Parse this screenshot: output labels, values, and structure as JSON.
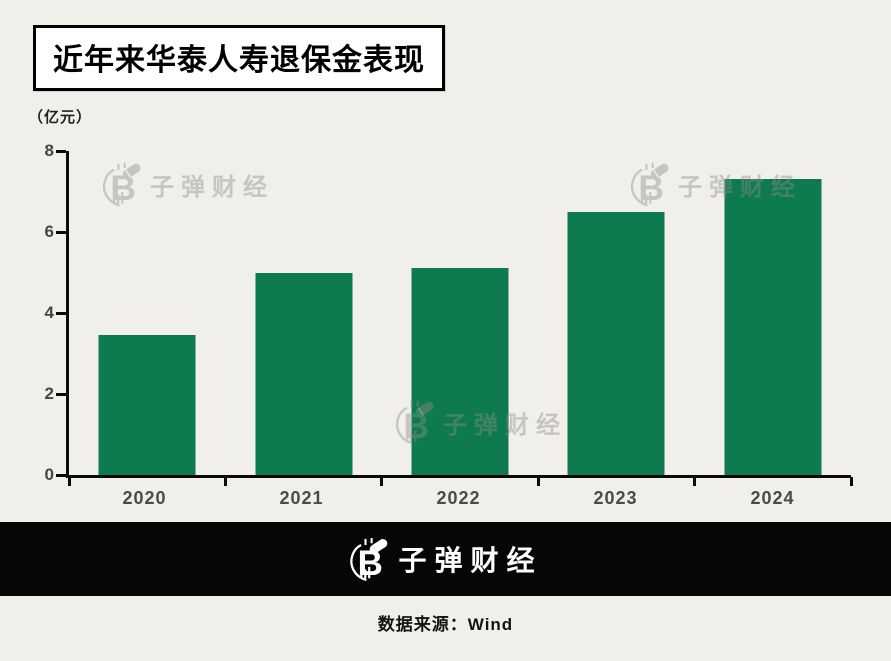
{
  "title": "近年来华泰人寿退保金表现",
  "unit_label": "（亿元）",
  "watermark_text": "子弹财经",
  "footer": {
    "brand": "子弹财经",
    "source": "数据来源：Wind"
  },
  "colors": {
    "background": "#f0efe9",
    "bar": "#0e7b4e",
    "axis": "#0a0a0a",
    "y_tick_label": "#45454d",
    "x_tick_label": "#4a4a4a",
    "footer_background": "#060606",
    "title_background": "#ffffff",
    "watermark": "#8d8d85"
  },
  "chart_data": {
    "type": "bar",
    "categories": [
      "2020",
      "2021",
      "2022",
      "2023",
      "2024"
    ],
    "values": [
      3.45,
      5.0,
      5.1,
      6.5,
      7.3
    ],
    "title": "近年来华泰人寿退保金表现",
    "xlabel": "",
    "ylabel": "（亿元）",
    "ylim": [
      0,
      8
    ],
    "yticks": [
      0,
      2,
      4,
      6,
      8
    ],
    "grid": false,
    "legend": false,
    "bar_color": "#0e7b4e"
  }
}
